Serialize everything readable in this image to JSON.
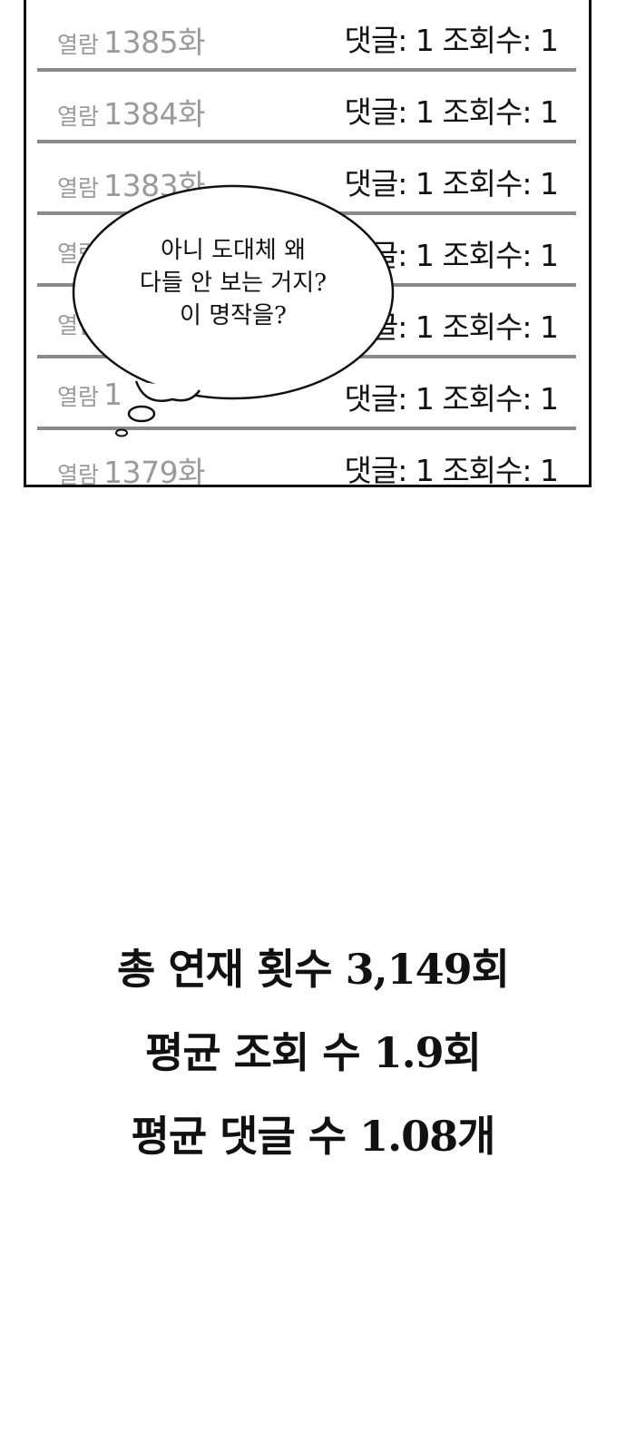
{
  "episodes": [
    {
      "prefix": "열람",
      "number": "1385화",
      "stats": "댓글: 1 조회수: 1"
    },
    {
      "prefix": "열람",
      "number": "1384화",
      "stats": "댓글: 1 조회수: 1"
    },
    {
      "prefix": "열람",
      "number": "1383화",
      "stats": "댓글: 1 조회수: 1"
    },
    {
      "prefix": "열람",
      "number": "",
      "stats": "댓글: 1 조회수: 1"
    },
    {
      "prefix": "열람",
      "number": "",
      "stats": "댓글: 1 조회수: 1"
    },
    {
      "prefix": "열람",
      "number": "1",
      "stats": "댓글: 1 조회수: 1"
    },
    {
      "prefix": "열람",
      "number": "1379화",
      "stats": "댓글: 1 조회수: 1"
    }
  ],
  "bubble": {
    "lines": [
      "아니 도대체 왜",
      "다들 안 보는 거지?",
      "이 명작을?"
    ]
  },
  "summary": {
    "total_episodes": "총 연재 횟수 3,149회",
    "avg_views": "평균 조회 수 1.9회",
    "avg_comments": "평균 댓글 수 1.08개"
  }
}
